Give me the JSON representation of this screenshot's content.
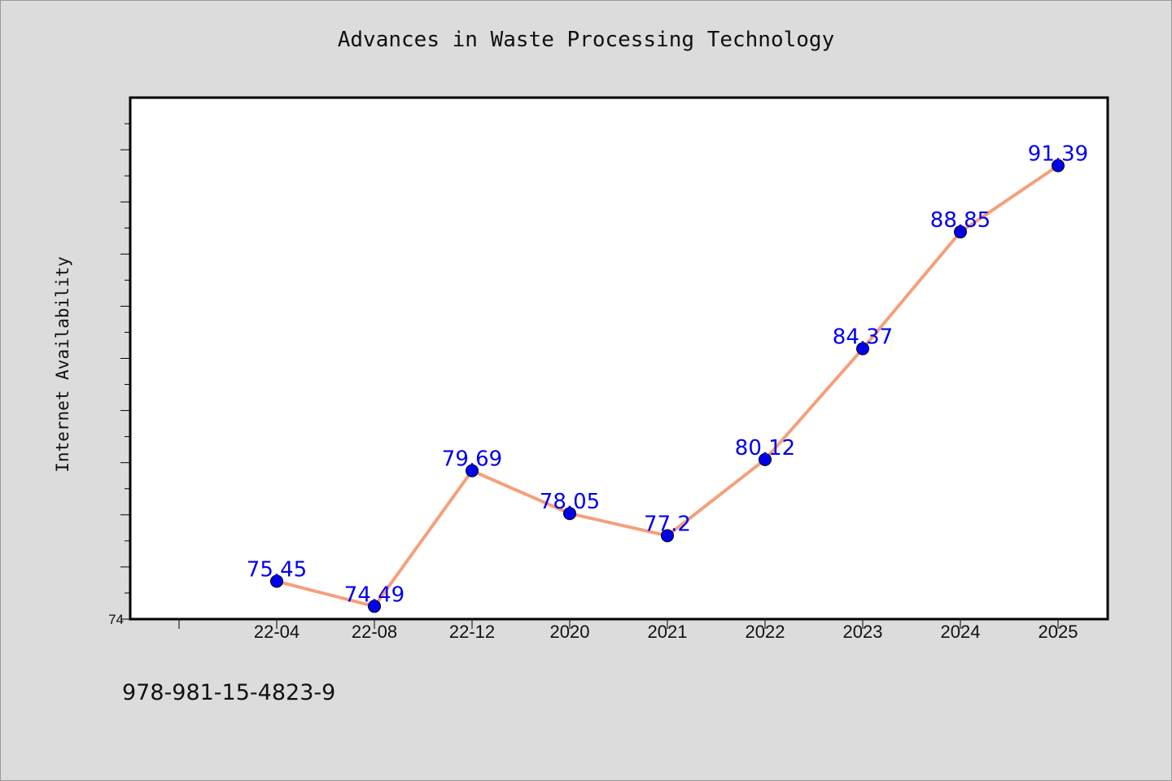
{
  "chart_data": {
    "type": "line",
    "title": "Advances in Waste Processing Technology",
    "xlabel": "",
    "ylabel": "Internet Availability",
    "categories": [
      "22-04",
      "22-08",
      "22-12",
      "2020",
      "2021",
      "2022",
      "2023",
      "2024",
      "2025"
    ],
    "series": [
      {
        "values": [
          75.45,
          74.49,
          79.69,
          78.05,
          77.2,
          80.12,
          84.37,
          88.85,
          91.39
        ],
        "labels": [
          "75.45",
          "74.49",
          "79.69",
          "78.05",
          "77.2",
          "80.12",
          "84.37",
          "88.85",
          "91.39"
        ],
        "color": "#f4a07c",
        "marker_color": "#0000ee"
      }
    ],
    "ylim": [
      74,
      94
    ],
    "ytick_labels": [
      "74"
    ],
    "grid": false,
    "legend": "none",
    "annotation": "978-981-15-4823-9",
    "colors": {
      "background": "#dcdcdc",
      "plot_area": "#ffffff",
      "line": "#f4a07c",
      "marker": "#0000ee",
      "data_label": "#0000ee"
    }
  }
}
